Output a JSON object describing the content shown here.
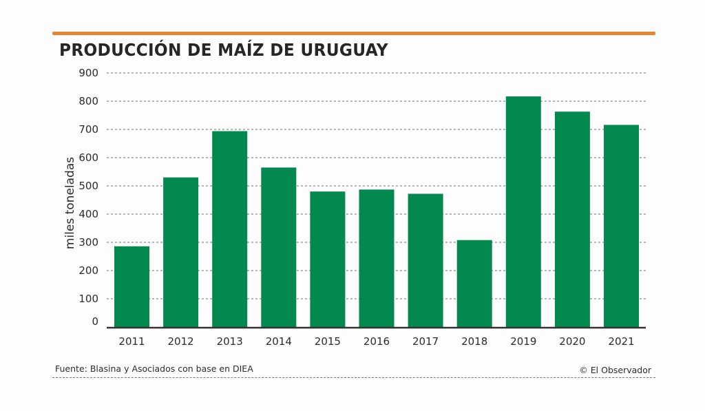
{
  "header": {
    "title": "PRODUCCIÓN DE MAÍZ DE URUGUAY",
    "accent_color": "#e8832f"
  },
  "footer": {
    "source": "Fuente: Blasina y Asociados con base en DIEA",
    "credit": "© El Observador"
  },
  "chart_data": {
    "type": "bar",
    "title": "PRODUCCIÓN DE MAÍZ DE URUGUAY",
    "xlabel": "",
    "ylabel": "miles toneladas",
    "categories": [
      "2011",
      "2012",
      "2013",
      "2014",
      "2015",
      "2016",
      "2017",
      "2018",
      "2019",
      "2020",
      "2021"
    ],
    "values": [
      286,
      530,
      694,
      565,
      480,
      487,
      472,
      308,
      817,
      763,
      716
    ],
    "ylim": [
      0,
      900
    ],
    "yticks": [
      0,
      100,
      200,
      300,
      400,
      500,
      600,
      700,
      800,
      900
    ],
    "ytick_labels": [
      "0",
      "100",
      "200",
      "300",
      "400",
      "500",
      "600",
      "700",
      "800",
      "900"
    ],
    "grid": true,
    "legend": "none",
    "bar_color": "#03894d",
    "grid_color": "#8a8a8a",
    "axis_color": "#333333"
  }
}
